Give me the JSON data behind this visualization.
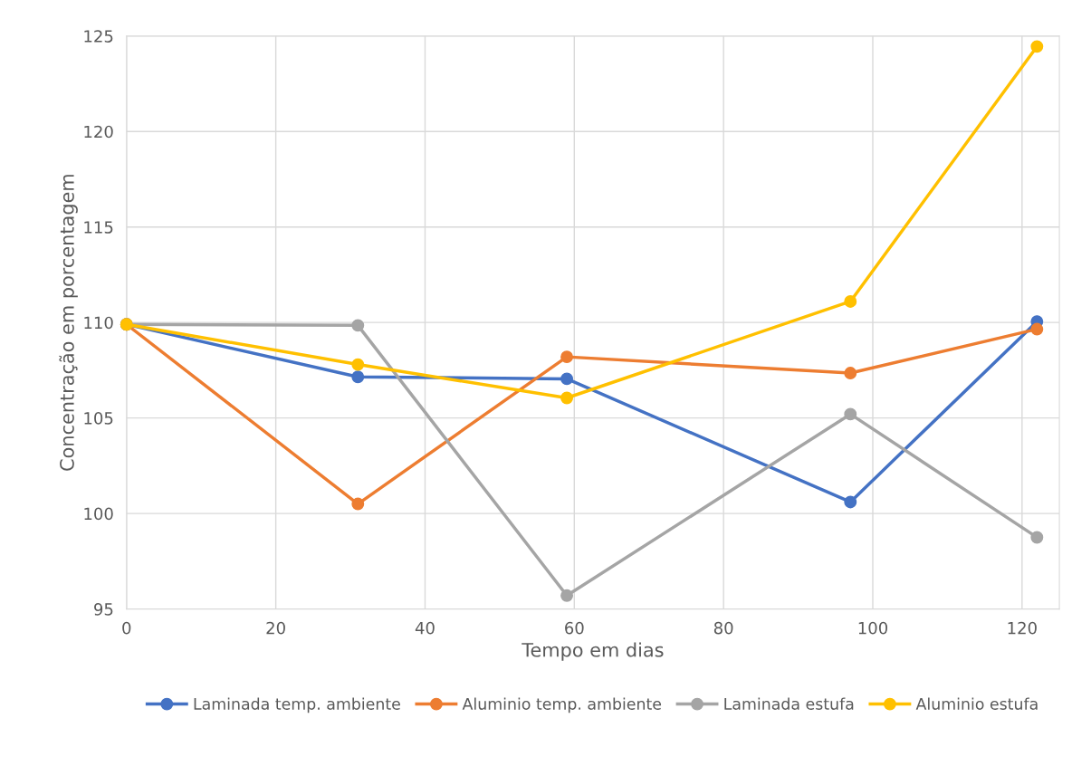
{
  "chart_data": {
    "type": "line",
    "xlabel": "Tempo em dias",
    "ylabel": "Concentração em porcentagem",
    "x": [
      0,
      31,
      59,
      97,
      122
    ],
    "series": [
      {
        "name": "Laminada temp. ambiente",
        "color": "#4472c4",
        "values": [
          109.9,
          107.15,
          107.05,
          100.6,
          110.05
        ]
      },
      {
        "name": "Aluminio temp. ambiente",
        "color": "#ed7d31",
        "values": [
          109.9,
          100.5,
          108.2,
          107.35,
          109.65
        ]
      },
      {
        "name": "Laminada estufa",
        "color": "#a5a5a5",
        "values": [
          109.9,
          109.85,
          95.7,
          105.2,
          98.75
        ]
      },
      {
        "name": "Aluminio estufa",
        "color": "#ffc000",
        "values": [
          109.9,
          107.8,
          106.05,
          111.1,
          124.45
        ]
      }
    ],
    "xlim": [
      0,
      125
    ],
    "xticks": [
      0,
      20,
      40,
      60,
      80,
      100,
      120
    ],
    "ylim": [
      95,
      125
    ],
    "yticks": [
      95,
      100,
      105,
      110,
      115,
      120,
      125
    ],
    "grid": true,
    "legend": "bottom",
    "marker": "circle",
    "line_style": "solid"
  }
}
